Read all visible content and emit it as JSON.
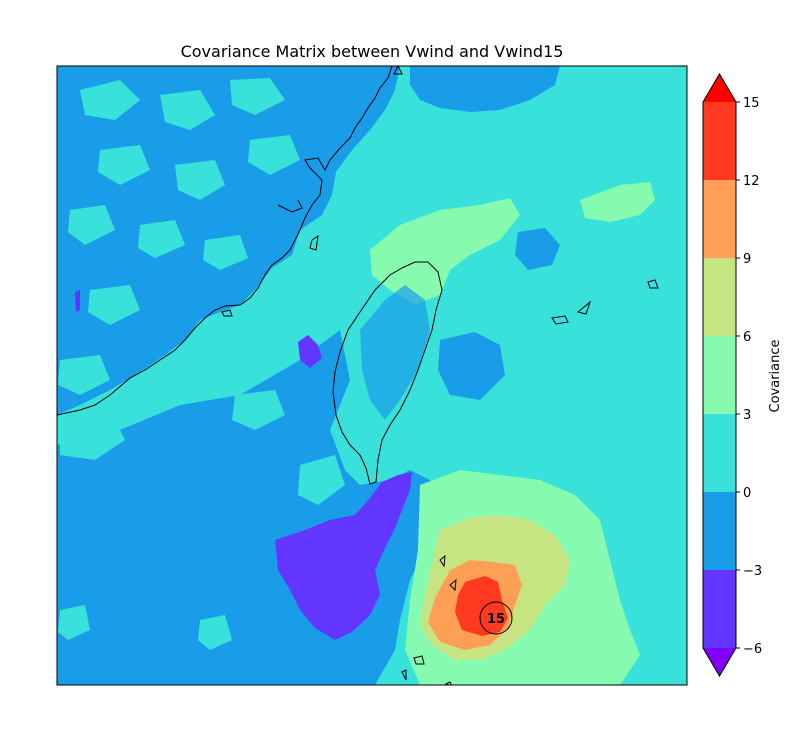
{
  "chart_data": {
    "type": "heatmap",
    "title": "Covariance Matrix between Vwind and Vwind15",
    "colorbar": {
      "label": "Covariance",
      "levels": [
        -6,
        -3,
        0,
        3,
        6,
        9,
        12,
        15
      ],
      "tick_labels": [
        "−6",
        "−3",
        "0",
        "3",
        "6",
        "9",
        "12",
        "15"
      ],
      "colors": [
        "#6236ff",
        "#1a9de9",
        "#38e2da",
        "#86fbb0",
        "#c7e483",
        "#ff9f55",
        "#ff3a20"
      ],
      "under_color": "#8000ff",
      "over_color": "#ff0000",
      "extend": "both"
    },
    "marker": {
      "label": "15"
    }
  }
}
